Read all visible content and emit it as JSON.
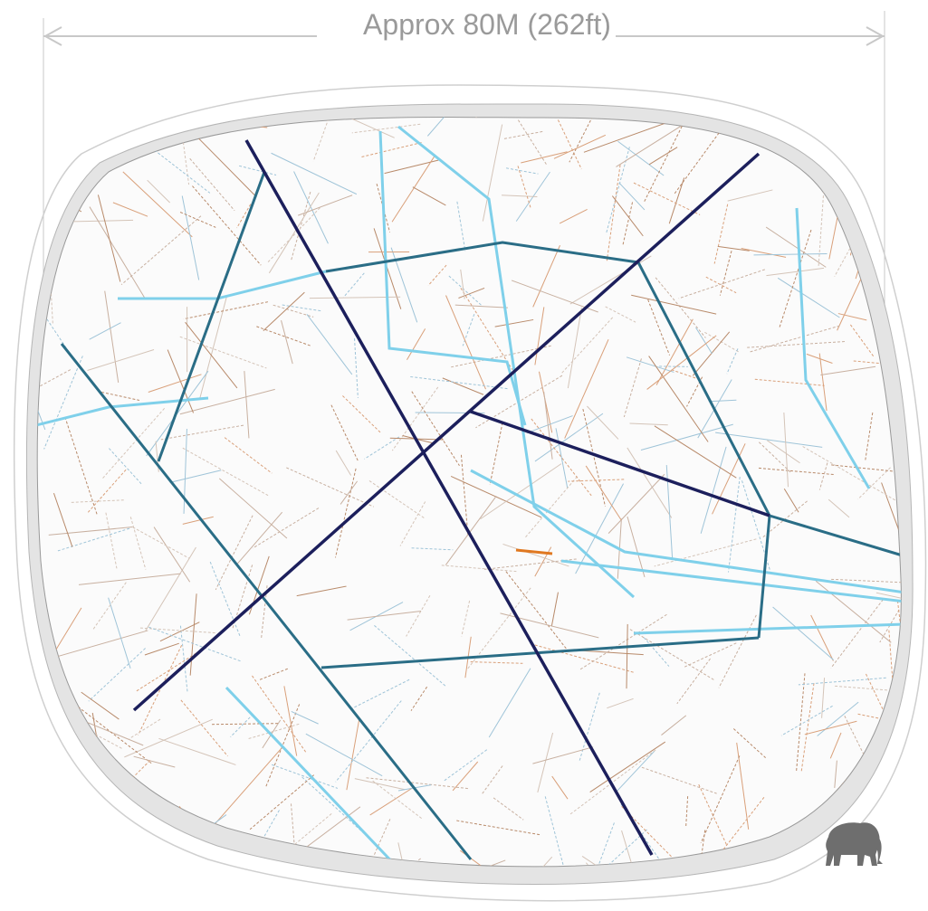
{
  "dimension": {
    "label": "Approx 80M (262ft)"
  }
}
